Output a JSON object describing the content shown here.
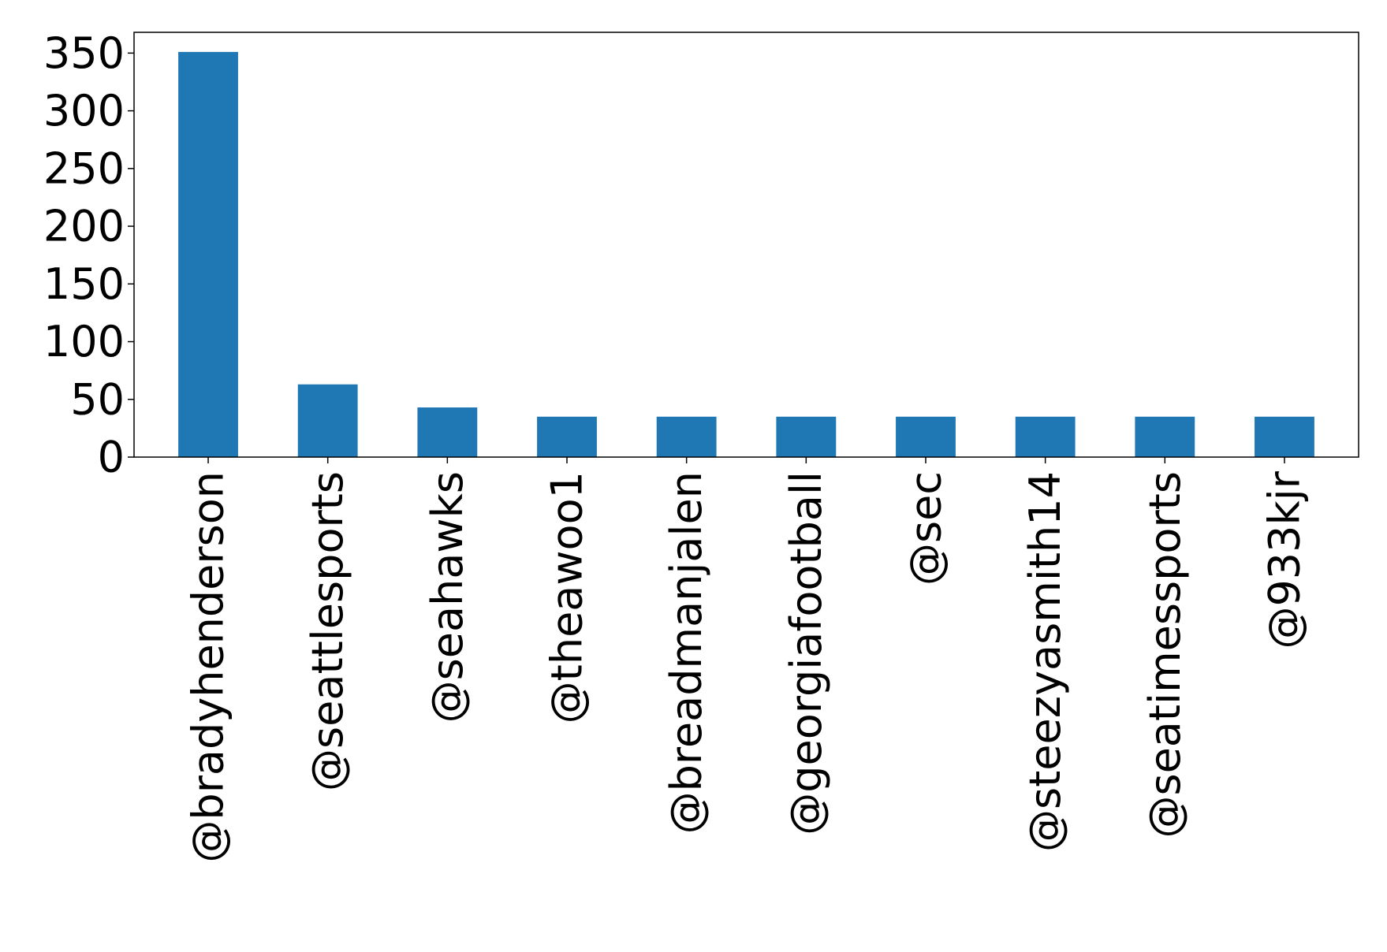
{
  "chart_data": {
    "type": "bar",
    "title": "",
    "xlabel": "",
    "ylabel": "",
    "categories": [
      "@bradyhenderson",
      "@seattlesports",
      "@seahawks",
      "@theawoo1",
      "@breadmanjalen",
      "@georgiafootball",
      "@sec",
      "@steezyasmith14",
      "@seatimessports",
      "@933kjr"
    ],
    "values": [
      351,
      63,
      43,
      35,
      35,
      35,
      35,
      35,
      35,
      35
    ],
    "ylim": [
      0,
      368
    ],
    "yticks": [
      0,
      50,
      100,
      150,
      200,
      250,
      300,
      350
    ],
    "bar_color": "#1f77b4",
    "grid": false,
    "legend": "none"
  }
}
